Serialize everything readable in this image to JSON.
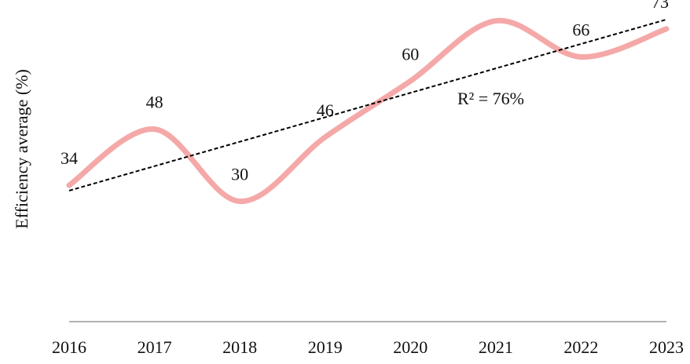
{
  "chart_data": {
    "type": "line",
    "y_label": "Efficiency average (%)",
    "categories": [
      "2016",
      "2017",
      "2018",
      "2019",
      "2020",
      "2021",
      "2022",
      "2023"
    ],
    "series": [
      {
        "color": "#f4a9a8",
        "values": [
          34,
          48,
          30,
          46,
          60,
          75,
          66,
          73
        ]
      }
    ],
    "ylim": [
      0,
      80
    ],
    "smooth": true,
    "data_labels": true,
    "trendline": {
      "type": "linear",
      "color": "#000000",
      "label": "R² = 76%"
    }
  }
}
